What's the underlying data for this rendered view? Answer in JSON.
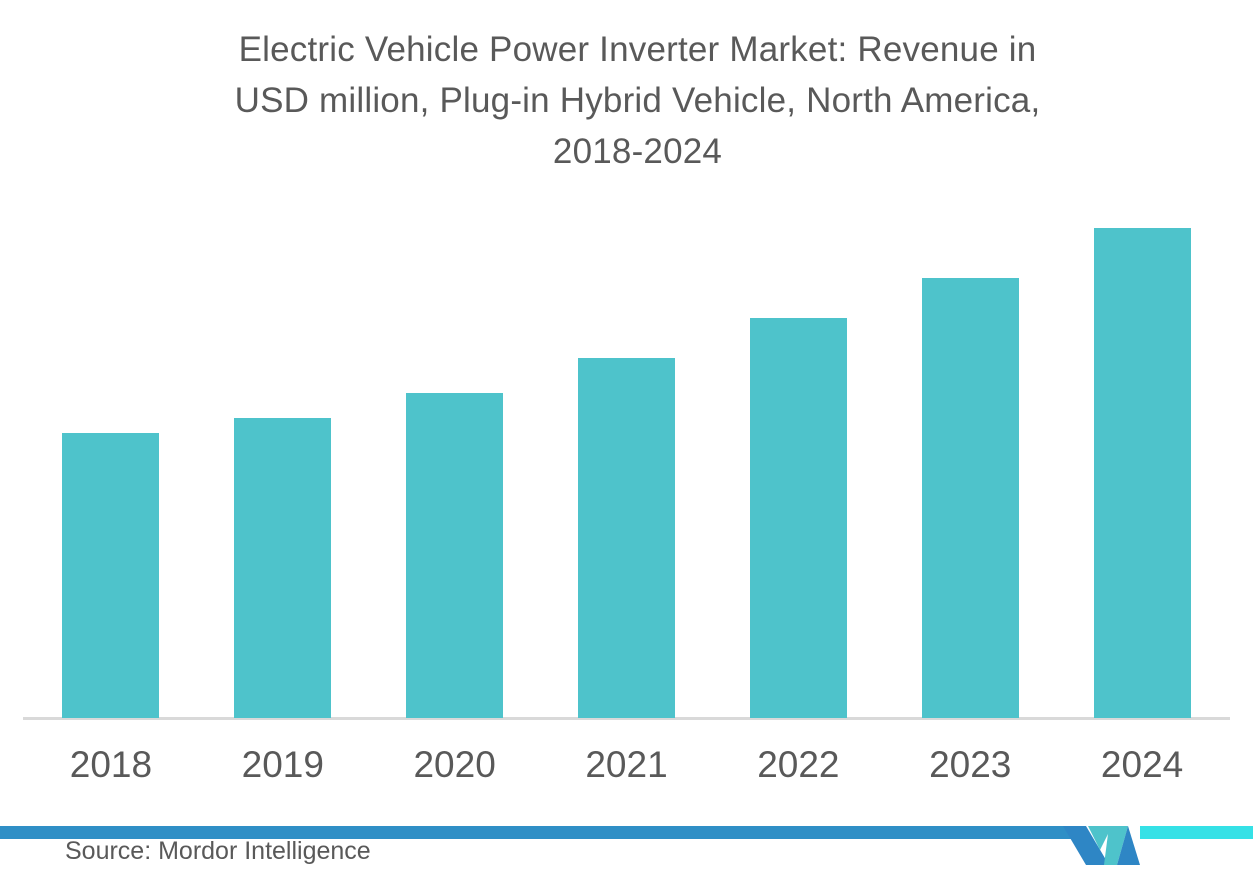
{
  "title": {
    "lines": [
      "Electric Vehicle Power Inverter Market: Revenue in",
      "USD million, Plug-in Hybrid Vehicle, North America,",
      "2018-2024"
    ]
  },
  "chart_data": {
    "type": "bar",
    "title": "Electric Vehicle Power Inverter Market: Revenue in USD million, Plug-in Hybrid Vehicle, North America, 2018-2024",
    "categories": [
      "2018",
      "2019",
      "2020",
      "2021",
      "2022",
      "2023",
      "2024"
    ],
    "values": [
      285,
      300,
      325,
      360,
      400,
      440,
      490
    ],
    "unit": "USD million",
    "ylim": [
      0,
      520
    ],
    "grid": false,
    "y_axis_shown": false,
    "x_axis_line_shown": true,
    "value_labels_shown": false,
    "legend": null,
    "bar_color": "#4EC3CB",
    "axis_line_color": "#D9D9D9",
    "tick_label_color": "#595959"
  },
  "footer": {
    "source_label": "Source: Mordor Intelligence",
    "stripe_blue_color": "#2F8FC6",
    "stripe_cyan_color": "#35E1E6",
    "logo_icon": "mordor-intelligence-logo",
    "logo_blue": "#2E86C5",
    "logo_teal": "#4EC3CB"
  },
  "background_color": "#FFFFFF",
  "title_color": "#595959"
}
